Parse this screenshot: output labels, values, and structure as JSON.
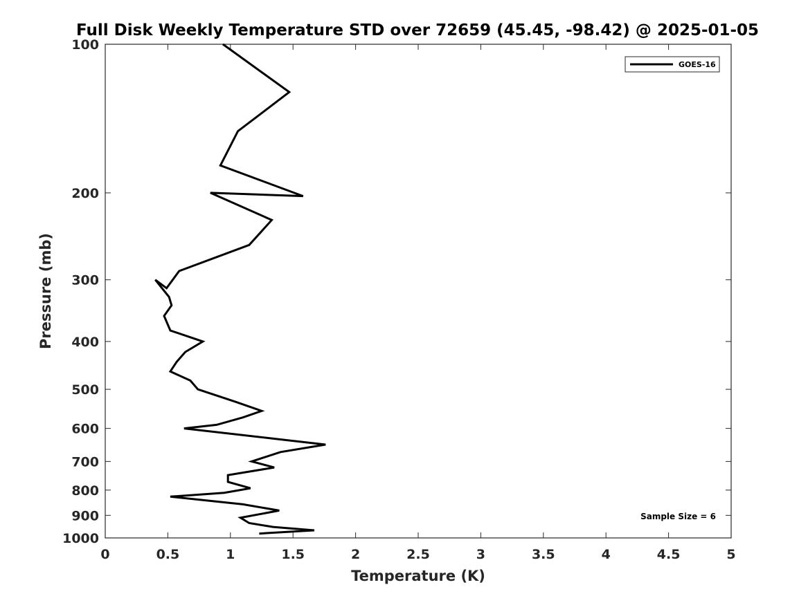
{
  "chart_data": {
    "type": "line",
    "title": "Full Disk Weekly Temperature STD over 72659 (45.45, -98.42) @ 2025-01-05",
    "xlabel": "Temperature (K)",
    "ylabel": "Pressure (mb)",
    "xlim": [
      0,
      5
    ],
    "ylim": [
      100,
      1000
    ],
    "yscale": "log",
    "y_reversed": true,
    "xticks": [
      0,
      0.5,
      1,
      1.5,
      2,
      2.5,
      3,
      3.5,
      4,
      4.5,
      5
    ],
    "xtick_labels": [
      "0",
      "0.5",
      "1",
      "1.5",
      "2",
      "2.5",
      "3",
      "3.5",
      "4",
      "4.5",
      "5"
    ],
    "yticks": [
      100,
      200,
      300,
      400,
      500,
      600,
      700,
      800,
      900,
      1000
    ],
    "ytick_labels": [
      "100",
      "200",
      "300",
      "400",
      "500",
      "600",
      "700",
      "800",
      "900",
      "1000"
    ],
    "grid": false,
    "legend_position": "top-right",
    "annotation": "Sample Size = 6",
    "series": [
      {
        "name": "GOES-16",
        "color": "#000000",
        "points": [
          [
            0.94,
            100
          ],
          [
            1.47,
            125
          ],
          [
            1.06,
            150
          ],
          [
            0.92,
            176
          ],
          [
            1.58,
            203
          ],
          [
            0.84,
            200
          ],
          [
            1.33,
            227
          ],
          [
            1.15,
            255
          ],
          [
            0.59,
            288
          ],
          [
            0.49,
            312
          ],
          [
            0.4,
            300
          ],
          [
            0.51,
            325
          ],
          [
            0.53,
            338
          ],
          [
            0.47,
            355
          ],
          [
            0.52,
            380
          ],
          [
            0.78,
            400
          ],
          [
            0.64,
            420
          ],
          [
            0.57,
            440
          ],
          [
            0.52,
            460
          ],
          [
            0.68,
            480
          ],
          [
            0.74,
            500
          ],
          [
            1.04,
            530
          ],
          [
            1.25,
            553
          ],
          [
            1.1,
            570
          ],
          [
            0.89,
            590
          ],
          [
            0.63,
            600
          ],
          [
            1.76,
            647
          ],
          [
            1.4,
            670
          ],
          [
            1.17,
            700
          ],
          [
            1.35,
            720
          ],
          [
            0.98,
            746
          ],
          [
            0.98,
            770
          ],
          [
            1.16,
            793
          ],
          [
            0.95,
            810
          ],
          [
            0.52,
            825
          ],
          [
            1.1,
            855
          ],
          [
            1.39,
            880
          ],
          [
            1.08,
            910
          ],
          [
            1.15,
            933
          ],
          [
            1.34,
            950
          ],
          [
            1.67,
            965
          ],
          [
            1.23,
            980
          ]
        ]
      }
    ]
  }
}
